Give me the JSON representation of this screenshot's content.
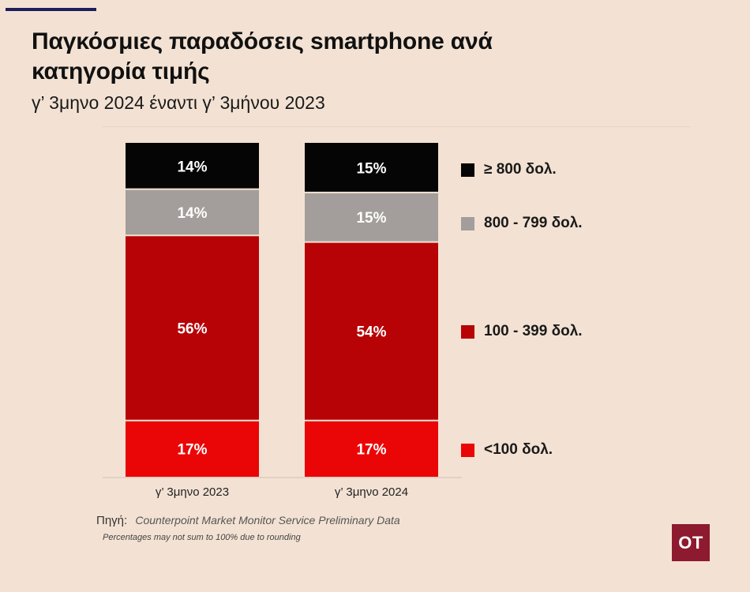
{
  "chart_data": {
    "type": "bar",
    "stacked": true,
    "title": "Παγκόσμιες παραδόσεις smartphone ανά κατηγορία τιμής",
    "subtitle": "γ’ 3μηνο 2024 έναντι γ’ 3μήνου 2023",
    "categories": [
      "γ’ 3μηνο 2023",
      "γ’ 3μηνο 2024"
    ],
    "series": [
      {
        "name": "<100 δολ.",
        "values": [
          17,
          17
        ],
        "labels": [
          "17%",
          "17%"
        ],
        "color": "#ea0606"
      },
      {
        "name": "100 - 399 δολ.",
        "values": [
          56,
          54
        ],
        "labels": [
          "56%",
          "54%"
        ],
        "color": "#b70206"
      },
      {
        "name": "800 - 799 δολ.",
        "values": [
          14,
          15
        ],
        "labels": [
          "14%",
          "15%"
        ],
        "color": "#a39e9b"
      },
      {
        "name": "≥ 800 δολ.",
        "values": [
          14,
          15
        ],
        "labels": [
          "14%",
          "15%"
        ],
        "color": "#050505"
      }
    ],
    "ylim": [
      0,
      100
    ],
    "legend_position": "right"
  },
  "source": {
    "label": "Πηγή:",
    "value": "Counterpoint Market Monitor Service Preliminary Data"
  },
  "note": "Percentages may not sum to 100% due to rounding",
  "logo": "OT"
}
